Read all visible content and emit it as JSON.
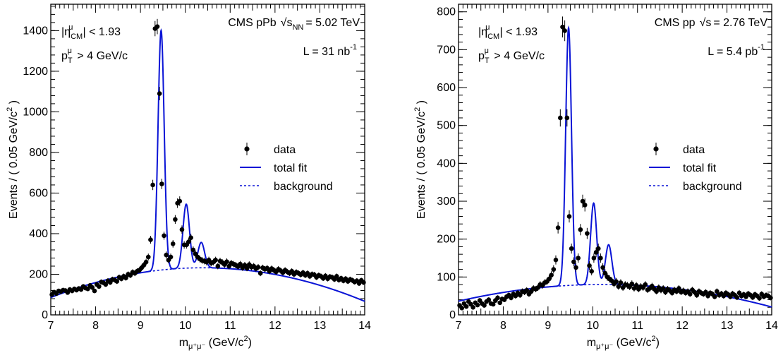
{
  "chart_data": [
    {
      "type": "scatter",
      "annotation_lines": [
        "|η_CM^μ| < 1.93",
        "p_T^μ > 4 GeV/c"
      ],
      "experiment": {
        "label": "CMS pPb",
        "energy_symbol": "√s",
        "energy_sub": "NN",
        "energy_value": "= 5.02 TeV"
      },
      "luminosity": {
        "text": "L = 31 nb",
        "exp": "-1"
      },
      "xlabel": {
        "main": "m",
        "sub": "μ⁺μ⁻",
        "unit": " (GeV/c",
        "unit_sup": "2",
        "unit_close": ")"
      },
      "ylabel": {
        "main": "Events / ( 0.05 GeV/c",
        "sup": "2",
        "close": " )"
      },
      "xlim": [
        7,
        14
      ],
      "ylim": [
        0,
        1530
      ],
      "xticks": [
        7,
        8,
        9,
        10,
        11,
        12,
        13,
        14
      ],
      "yticks": [
        0,
        200,
        400,
        600,
        800,
        1000,
        1200,
        1400
      ],
      "legend": {
        "position": "right-middle",
        "items": [
          {
            "label": "data",
            "style": "marker"
          },
          {
            "label": "total fit",
            "style": "solid"
          },
          {
            "label": "background",
            "style": "dashed"
          }
        ]
      },
      "colors": {
        "fit": "#0a14d6",
        "data": "#000000"
      },
      "background": {
        "a": -1140,
        "b": 264,
        "c": -12.7
      },
      "peaks": [
        {
          "mean": 9.46,
          "sigma": 0.068,
          "amp": 1180
        },
        {
          "mean": 10.02,
          "sigma": 0.072,
          "amp": 315
        },
        {
          "mean": 10.355,
          "sigma": 0.075,
          "amp": 125
        }
      ],
      "series": [
        {
          "name": "data",
          "x": [
            7.025,
            7.075,
            7.125,
            7.175,
            7.225,
            7.275,
            7.325,
            7.375,
            7.425,
            7.475,
            7.525,
            7.575,
            7.625,
            7.675,
            7.725,
            7.775,
            7.825,
            7.875,
            7.925,
            7.975,
            8.025,
            8.075,
            8.125,
            8.175,
            8.225,
            8.275,
            8.325,
            8.375,
            8.425,
            8.475,
            8.525,
            8.575,
            8.625,
            8.675,
            8.725,
            8.775,
            8.825,
            8.875,
            8.925,
            8.975,
            9.025,
            9.075,
            9.125,
            9.175,
            9.225,
            9.275,
            9.325,
            9.375,
            9.425,
            9.475,
            9.525,
            9.575,
            9.625,
            9.675,
            9.725,
            9.775,
            9.825,
            9.875,
            9.925,
            9.975,
            10.025,
            10.075,
            10.125,
            10.175,
            10.225,
            10.275,
            10.325,
            10.375,
            10.425,
            10.475,
            10.525,
            10.575,
            10.625,
            10.675,
            10.725,
            10.775,
            10.825,
            10.875,
            10.925,
            10.975,
            11.025,
            11.075,
            11.125,
            11.175,
            11.225,
            11.275,
            11.325,
            11.375,
            11.425,
            11.475,
            11.525,
            11.575,
            11.625,
            11.675,
            11.725,
            11.775,
            11.825,
            11.875,
            11.925,
            11.975,
            12.025,
            12.075,
            12.125,
            12.175,
            12.225,
            12.275,
            12.325,
            12.375,
            12.425,
            12.475,
            12.525,
            12.575,
            12.625,
            12.675,
            12.725,
            12.775,
            12.825,
            12.875,
            12.925,
            12.975,
            13.025,
            13.075,
            13.125,
            13.175,
            13.225,
            13.275,
            13.325,
            13.375,
            13.425,
            13.475,
            13.525,
            13.575,
            13.625,
            13.675,
            13.725,
            13.775,
            13.825,
            13.875,
            13.925,
            13.975
          ],
          "y": [
            100,
            112,
            105,
            118,
            115,
            122,
            120,
            110,
            125,
            118,
            128,
            122,
            130,
            125,
            140,
            132,
            128,
            145,
            135,
            118,
            150,
            140,
            162,
            158,
            150,
            168,
            160,
            175,
            172,
            165,
            185,
            178,
            190,
            182,
            200,
            195,
            210,
            205,
            215,
            220,
            232,
            245,
            260,
            285,
            370,
            640,
            1410,
            1420,
            1090,
            645,
            390,
            295,
            270,
            285,
            350,
            470,
            550,
            560,
            420,
            345,
            345,
            360,
            380,
            320,
            300,
            285,
            275,
            268,
            265,
            260,
            270,
            255,
            260,
            270,
            240,
            265,
            258,
            248,
            262,
            240,
            255,
            250,
            245,
            238,
            250,
            232,
            245,
            230,
            248,
            235,
            240,
            228,
            235,
            205,
            232,
            225,
            230,
            215,
            228,
            220,
            212,
            225,
            218,
            208,
            220,
            212,
            205,
            215,
            200,
            210,
            205,
            198,
            208,
            195,
            205,
            190,
            200,
            198,
            185,
            195,
            190,
            180,
            192,
            178,
            188,
            185,
            175,
            190,
            172,
            180,
            168,
            178,
            165,
            175,
            170,
            162,
            168,
            155,
            170,
            160
          ]
        }
      ]
    },
    {
      "type": "scatter",
      "annotation_lines": [
        "|η_CM^μ| < 1.93",
        "p_T^μ > 4 GeV/c"
      ],
      "experiment": {
        "label": "CMS pp",
        "energy_symbol": "√s",
        "energy_sub": "",
        "energy_value": "= 2.76 TeV"
      },
      "luminosity": {
        "text": "L = 5.4 pb",
        "exp": "-1"
      },
      "xlabel": {
        "main": "m",
        "sub": "μ⁺μ⁻",
        "unit": " (GeV/c",
        "unit_sup": "2",
        "unit_close": ")"
      },
      "ylabel": {
        "main": "Events / ( 0.05 GeV/c",
        "sup": "2",
        "close": " )"
      },
      "xlim": [
        7,
        14
      ],
      "ylim": [
        0,
        820
      ],
      "xticks": [
        7,
        8,
        9,
        10,
        11,
        12,
        13,
        14
      ],
      "yticks": [
        0,
        100,
        200,
        300,
        400,
        500,
        600,
        700,
        800
      ],
      "legend": {
        "position": "right-middle",
        "items": [
          {
            "label": "data",
            "style": "marker"
          },
          {
            "label": "total fit",
            "style": "solid"
          },
          {
            "label": "background",
            "style": "dashed"
          }
        ]
      },
      "colors": {
        "fit": "#0a14d6",
        "data": "#000000"
      },
      "background": {
        "a": -360,
        "b": 86,
        "c": -4.2
      },
      "peaks": [
        {
          "mean": 9.46,
          "sigma": 0.065,
          "amp": 680
        },
        {
          "mean": 10.02,
          "sigma": 0.068,
          "amp": 215
        },
        {
          "mean": 10.355,
          "sigma": 0.072,
          "amp": 105
        }
      ],
      "series": [
        {
          "name": "data",
          "x": [
            7.025,
            7.075,
            7.125,
            7.175,
            7.225,
            7.275,
            7.325,
            7.375,
            7.425,
            7.475,
            7.525,
            7.575,
            7.625,
            7.675,
            7.725,
            7.775,
            7.825,
            7.875,
            7.925,
            7.975,
            8.025,
            8.075,
            8.125,
            8.175,
            8.225,
            8.275,
            8.325,
            8.375,
            8.425,
            8.475,
            8.525,
            8.575,
            8.625,
            8.675,
            8.725,
            8.775,
            8.825,
            8.875,
            8.925,
            8.975,
            9.025,
            9.075,
            9.125,
            9.175,
            9.225,
            9.275,
            9.325,
            9.375,
            9.425,
            9.475,
            9.525,
            9.575,
            9.625,
            9.675,
            9.725,
            9.775,
            9.825,
            9.875,
            9.925,
            9.975,
            10.025,
            10.075,
            10.125,
            10.175,
            10.225,
            10.275,
            10.325,
            10.375,
            10.425,
            10.475,
            10.525,
            10.575,
            10.625,
            10.675,
            10.725,
            10.775,
            10.825,
            10.875,
            10.925,
            10.975,
            11.025,
            11.075,
            11.125,
            11.175,
            11.225,
            11.275,
            11.325,
            11.375,
            11.425,
            11.475,
            11.525,
            11.575,
            11.625,
            11.675,
            11.725,
            11.775,
            11.825,
            11.875,
            11.925,
            11.975,
            12.025,
            12.075,
            12.125,
            12.175,
            12.225,
            12.275,
            12.325,
            12.375,
            12.425,
            12.475,
            12.525,
            12.575,
            12.625,
            12.675,
            12.725,
            12.775,
            12.825,
            12.875,
            12.925,
            12.975,
            13.025,
            13.075,
            13.125,
            13.175,
            13.225,
            13.275,
            13.325,
            13.375,
            13.425,
            13.475,
            13.525,
            13.575,
            13.625,
            13.675,
            13.725,
            13.775,
            13.825,
            13.875,
            13.925,
            13.975
          ],
          "y": [
            25,
            18,
            30,
            22,
            35,
            28,
            20,
            32,
            26,
            38,
            30,
            25,
            35,
            40,
            30,
            28,
            38,
            45,
            32,
            42,
            40,
            48,
            52,
            45,
            55,
            50,
            58,
            52,
            62,
            60,
            65,
            55,
            62,
            70,
            68,
            72,
            80,
            78,
            85,
            88,
            95,
            105,
            120,
            145,
            230,
            520,
            760,
            750,
            520,
            260,
            175,
            140,
            125,
            150,
            225,
            300,
            290,
            215,
            130,
            115,
            150,
            165,
            175,
            150,
            125,
            110,
            100,
            95,
            90,
            82,
            88,
            75,
            85,
            72,
            80,
            78,
            74,
            82,
            70,
            78,
            68,
            75,
            72,
            80,
            66,
            70,
            76,
            68,
            62,
            72,
            65,
            70,
            60,
            68,
            64,
            58,
            66,
            62,
            70,
            60,
            64,
            58,
            62,
            55,
            66,
            60,
            52,
            62,
            58,
            55,
            60,
            50,
            58,
            55,
            48,
            62,
            52,
            56,
            50,
            58,
            54,
            48,
            56,
            52,
            46,
            58,
            50,
            54,
            48,
            56,
            52,
            46,
            54,
            50,
            44,
            55,
            48,
            52,
            50,
            45
          ]
        }
      ]
    }
  ]
}
